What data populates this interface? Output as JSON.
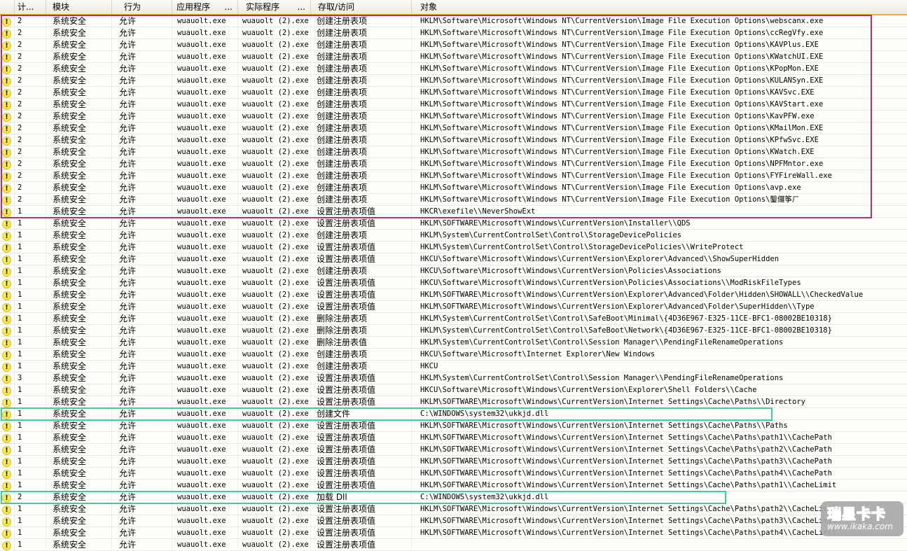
{
  "table": {
    "columns": [
      {
        "key": "count",
        "label": "计..."
      },
      {
        "key": "module",
        "label": "模块"
      },
      {
        "key": "behavior",
        "label": "行为"
      },
      {
        "key": "app",
        "label": "应用程序",
        "dots": "..."
      },
      {
        "key": "real_app",
        "label": "实际程序",
        "dots": "..."
      },
      {
        "key": "access",
        "label": "存取/访问"
      },
      {
        "key": "object",
        "label": "对象"
      }
    ],
    "defaults": {
      "icon_glyph": "!",
      "icon_name": "alert-icon",
      "module": "系统安全",
      "behavior": "允许",
      "app": "wuauolt.exe",
      "real_app": "wuauolt (2).exe"
    },
    "rows": [
      {
        "count": "2",
        "access": "创建注册表项",
        "object": "HKLM\\Software\\Microsoft\\Windows NT\\CurrentVersion\\Image File Execution Options\\webscanx.exe"
      },
      {
        "count": "2",
        "access": "创建注册表项",
        "object": "HKLM\\Software\\Microsoft\\Windows NT\\CurrentVersion\\Image File Execution Options\\ccRegVfy.exe"
      },
      {
        "count": "2",
        "access": "创建注册表项",
        "object": "HKLM\\Software\\Microsoft\\Windows NT\\CurrentVersion\\Image File Execution Options\\KAVPlus.EXE"
      },
      {
        "count": "2",
        "access": "创建注册表项",
        "object": "HKLM\\Software\\Microsoft\\Windows NT\\CurrentVersion\\Image File Execution Options\\KWatchUI.EXE"
      },
      {
        "count": "2",
        "access": "创建注册表项",
        "object": "HKLM\\Software\\Microsoft\\Windows NT\\CurrentVersion\\Image File Execution Options\\KPopMon.EXE"
      },
      {
        "count": "2",
        "access": "创建注册表项",
        "object": "HKLM\\Software\\Microsoft\\Windows NT\\CurrentVersion\\Image File Execution Options\\KULANSyn.EXE"
      },
      {
        "count": "2",
        "access": "创建注册表项",
        "object": "HKLM\\Software\\Microsoft\\Windows NT\\CurrentVersion\\Image File Execution Options\\KAVSvc.EXE"
      },
      {
        "count": "2",
        "access": "创建注册表项",
        "object": "HKLM\\Software\\Microsoft\\Windows NT\\CurrentVersion\\Image File Execution Options\\KAVStart.exe"
      },
      {
        "count": "2",
        "access": "创建注册表项",
        "object": "HKLM\\Software\\Microsoft\\Windows NT\\CurrentVersion\\Image File Execution Options\\KavPFW.exe"
      },
      {
        "count": "2",
        "access": "创建注册表项",
        "object": "HKLM\\Software\\Microsoft\\Windows NT\\CurrentVersion\\Image File Execution Options\\KMailMon.EXE"
      },
      {
        "count": "2",
        "access": "创建注册表项",
        "object": "HKLM\\Software\\Microsoft\\Windows NT\\CurrentVersion\\Image File Execution Options\\KPfwSvc.EXE"
      },
      {
        "count": "2",
        "access": "创建注册表项",
        "object": "HKLM\\Software\\Microsoft\\Windows NT\\CurrentVersion\\Image File Execution Options\\KWatch.EXE"
      },
      {
        "count": "2",
        "access": "创建注册表项",
        "object": "HKLM\\Software\\Microsoft\\Windows NT\\CurrentVersion\\Image File Execution Options\\NPFMntor.exe"
      },
      {
        "count": "2",
        "access": "创建注册表项",
        "object": "HKLM\\Software\\Microsoft\\Windows NT\\CurrentVersion\\Image File Execution Options\\FYFireWall.exe"
      },
      {
        "count": "2",
        "access": "创建注册表项",
        "object": "HKLM\\Software\\Microsoft\\Windows NT\\CurrentVersion\\Image File Execution Options\\avp.exe"
      },
      {
        "count": "2",
        "access": "创建注册表项",
        "object": "HKLM\\Software\\Microsoft\\Windows NT\\CurrentVersion\\Image File Execution Options\\鑿儸筝ㄏ"
      },
      {
        "count": "1",
        "access": "设置注册表项值",
        "object": "HKCR\\exefile\\\\NeverShowExt"
      },
      {
        "count": "1",
        "access": "设置注册表项值",
        "object": "HKLM\\SOFTWARE\\Microsoft\\Windows\\CurrentVersion\\Installer\\\\QDS"
      },
      {
        "count": "1",
        "access": "创建注册表项",
        "object": "HKLM\\System\\CurrentControlSet\\Control\\StorageDevicePolicies"
      },
      {
        "count": "1",
        "access": "设置注册表项值",
        "object": "HKLM\\System\\CurrentControlSet\\Control\\StorageDevicePolicies\\\\WriteProtect"
      },
      {
        "count": "1",
        "access": "设置注册表项值",
        "object": "HKCU\\Software\\Microsoft\\Windows\\CurrentVersion\\Explorer\\Advanced\\\\ShowSuperHidden"
      },
      {
        "count": "1",
        "access": "创建注册表项",
        "object": "HKCU\\Software\\Microsoft\\Windows\\CurrentVersion\\Policies\\Associations"
      },
      {
        "count": "1",
        "access": "设置注册表项值",
        "object": "HKCU\\Software\\Microsoft\\Windows\\CurrentVersion\\Policies\\Associations\\\\ModRiskFileTypes"
      },
      {
        "count": "1",
        "access": "设置注册表项值",
        "object": "HKLM\\SOFTWARE\\Microsoft\\Windows\\CurrentVersion\\Explorer\\Advanced\\Folder\\Hidden\\SHOWALL\\\\CheckedValue"
      },
      {
        "count": "1",
        "access": "设置注册表项值",
        "object": "HKLM\\SOFTWARE\\Microsoft\\Windows\\CurrentVersion\\Explorer\\Advanced\\Folder\\SuperHidden\\\\Type"
      },
      {
        "count": "1",
        "access": "删除注册表项",
        "object": "HKLM\\System\\CurrentControlSet\\Control\\SafeBoot\\Minimal\\{4D36E967-E325-11CE-BFC1-08002BE10318}"
      },
      {
        "count": "1",
        "access": "删除注册表项",
        "object": "HKLM\\System\\CurrentControlSet\\Control\\SafeBoot\\Network\\{4D36E967-E325-11CE-BFC1-08002BE10318}"
      },
      {
        "count": "1",
        "access": "删除注册表值",
        "object": "HKLM\\System\\CurrentControlSet\\Control\\Session Manager\\\\PendingFileRenameOperations"
      },
      {
        "count": "1",
        "access": "创建注册表项",
        "object": "HKCU\\Software\\Microsoft\\Internet Explorer\\New Windows"
      },
      {
        "count": "1",
        "access": "创建注册表项",
        "object": "HKCU"
      },
      {
        "count": "3",
        "access": "设置注册表项值",
        "object": "HKLM\\System\\CurrentControlSet\\Control\\Session Manager\\\\PendingFileRenameOperations"
      },
      {
        "count": "1",
        "access": "设置注册表项值",
        "object": "HKCU\\Software\\Microsoft\\Windows\\CurrentVersion\\Explorer\\Shell Folders\\\\Cache"
      },
      {
        "count": "1",
        "access": "设置注册表项值",
        "object": "HKLM\\SOFTWARE\\Microsoft\\Windows\\CurrentVersion\\Internet Settings\\Cache\\Paths\\\\Directory"
      },
      {
        "count": "1",
        "access": "创建文件",
        "object": "C:\\WINDOWS\\system32\\ukkjd.dll",
        "highlight": "green"
      },
      {
        "count": "1",
        "access": "设置注册表项值",
        "object": "HKLM\\SOFTWARE\\Microsoft\\Windows\\CurrentVersion\\Internet Settings\\Cache\\Paths\\\\Paths"
      },
      {
        "count": "1",
        "access": "设置注册表项值",
        "object": "HKLM\\SOFTWARE\\Microsoft\\Windows\\CurrentVersion\\Internet Settings\\Cache\\Paths\\path1\\\\CachePath"
      },
      {
        "count": "1",
        "access": "设置注册表项值",
        "object": "HKLM\\SOFTWARE\\Microsoft\\Windows\\CurrentVersion\\Internet Settings\\Cache\\Paths\\path2\\\\CachePath"
      },
      {
        "count": "1",
        "access": "设置注册表项值",
        "object": "HKLM\\SOFTWARE\\Microsoft\\Windows\\CurrentVersion\\Internet Settings\\Cache\\Paths\\path3\\\\CachePath"
      },
      {
        "count": "1",
        "access": "设置注册表项值",
        "object": "HKLM\\SOFTWARE\\Microsoft\\Windows\\CurrentVersion\\Internet Settings\\Cache\\Paths\\path4\\\\CachePath"
      },
      {
        "count": "1",
        "access": "设置注册表项值",
        "object": "HKLM\\SOFTWARE\\Microsoft\\Windows\\CurrentVersion\\Internet Settings\\Cache\\Paths\\path1\\\\CacheLimit"
      },
      {
        "count": "2",
        "access": "加载 Dll",
        "object": "C:\\WINDOWS\\system32\\ukkjd.dll",
        "highlight": "green"
      },
      {
        "count": "1",
        "access": "设置注册表项值",
        "object": "HKLM\\SOFTWARE\\Microsoft\\Windows\\CurrentVersion\\Internet Settings\\Cache\\Paths\\path2\\\\CacheLimit"
      },
      {
        "count": "1",
        "access": "设置注册表项值",
        "object": "HKLM\\SOFTWARE\\Microsoft\\Windows\\CurrentVersion\\Internet Settings\\Cache\\Paths\\path3\\\\CacheLimit"
      },
      {
        "count": "1",
        "access": "设置注册表项值",
        "object": "HKLM\\SOFTWARE\\Microsoft\\Windows\\CurrentVersion\\Internet Settings\\Cache\\Paths\\path4\\\\CacheLimit"
      },
      {
        "count": "1",
        "access": "设置注册表项值",
        "object": ""
      }
    ]
  },
  "highlights": {
    "pink_box": {
      "color": "#c62a66",
      "first_row": 1,
      "last_row": 17
    },
    "green_box_color": "#3fd193",
    "header_underline_color": "#eeab47"
  },
  "watermark": {
    "brand": "瑞星卡卡",
    "url": "www.ikaka.com"
  }
}
